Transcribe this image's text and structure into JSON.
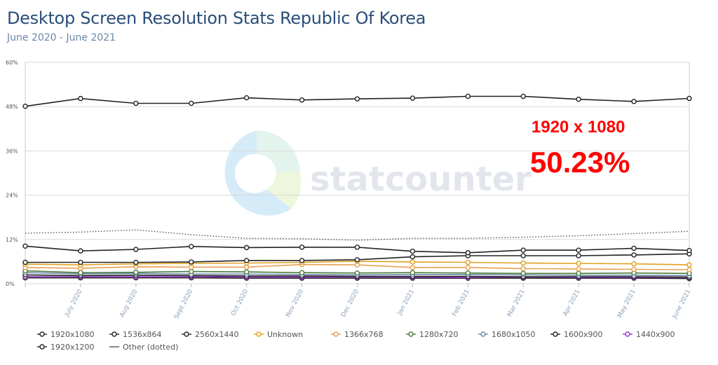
{
  "header": {
    "title": "Desktop Screen Resolution Stats Republic Of Korea",
    "subtitle": "June 2020 - June 2021"
  },
  "callout": {
    "label": "1920 x 1080",
    "value": "50.23%"
  },
  "watermark": {
    "text": "statcounter",
    "logo_icon": "statcounter-logo-icon"
  },
  "chart_data": {
    "type": "line",
    "title": "Desktop Screen Resolution Stats Republic Of Korea",
    "subtitle": "June 2020 - June 2021",
    "xlabel": "",
    "ylabel": "",
    "ylim": [
      0,
      60
    ],
    "yticks": [
      "0%",
      "12%",
      "24%",
      "36%",
      "48%",
      "60%"
    ],
    "ytick_values": [
      0,
      12,
      24,
      36,
      48,
      60
    ],
    "categories": [
      "June 2020",
      "July 2020",
      "Aug 2020",
      "Sept 2020",
      "Oct 2020",
      "Nov 2020",
      "Dec 2020",
      "Jan 2021",
      "Feb 2021",
      "Mar 2021",
      "Apr 2021",
      "May 2021",
      "June 2021"
    ],
    "xtick_labels": [
      "",
      "July 2020",
      "Aug 2020",
      "Sept 2020",
      "Oct 2020",
      "Nov 2020",
      "Dec 2020",
      "Jan 2021",
      "Feb 2021",
      "Mar 2021",
      "Apr 2021",
      "May 2021",
      "June 2021"
    ],
    "grid": true,
    "legend_position": "bottom",
    "series": [
      {
        "name": "1920x1080",
        "color": "#222222",
        "values": [
          48.1,
          50.2,
          48.9,
          48.9,
          50.4,
          49.8,
          50.1,
          50.3,
          50.8,
          50.8,
          50.0,
          49.4,
          50.23
        ]
      },
      {
        "name": "1536x864",
        "color": "#222222",
        "values": [
          10.2,
          8.9,
          9.3,
          10.1,
          9.8,
          9.9,
          9.9,
          8.8,
          8.4,
          9.1,
          9.1,
          9.6,
          9.0
        ]
      },
      {
        "name": "2560x1440",
        "color": "#222222",
        "values": [
          5.8,
          5.8,
          5.8,
          5.9,
          6.3,
          6.3,
          6.5,
          7.3,
          7.6,
          7.6,
          7.6,
          7.8,
          8.1
        ]
      },
      {
        "name": "Unknown",
        "color": "#e0a020",
        "values": [
          5.3,
          5.1,
          5.4,
          5.5,
          5.6,
          5.8,
          6.1,
          5.9,
          5.8,
          5.6,
          5.5,
          5.4,
          5.1
        ]
      },
      {
        "name": "1366x768",
        "color": "#e8a050",
        "values": [
          4.4,
          4.2,
          4.6,
          4.5,
          4.5,
          5.2,
          5.1,
          4.4,
          4.4,
          4.1,
          4.0,
          3.9,
          3.8
        ]
      },
      {
        "name": "1280x720",
        "color": "#4a7a3a",
        "values": [
          3.5,
          3.0,
          3.1,
          3.3,
          3.2,
          3.0,
          2.9,
          3.0,
          2.9,
          2.8,
          2.8,
          2.9,
          2.8
        ]
      },
      {
        "name": "1680x1050",
        "color": "#6a8aa8",
        "values": [
          3.0,
          2.7,
          2.8,
          2.6,
          2.6,
          2.5,
          2.4,
          2.5,
          2.5,
          2.4,
          2.3,
          2.3,
          2.2
        ]
      },
      {
        "name": "1600x900",
        "color": "#222222",
        "values": [
          2.4,
          2.2,
          2.3,
          2.2,
          2.1,
          2.1,
          2.0,
          2.0,
          2.0,
          1.9,
          1.9,
          1.9,
          1.8
        ]
      },
      {
        "name": "1440x900",
        "color": "#9b30d0",
        "values": [
          1.9,
          1.9,
          1.9,
          1.9,
          1.8,
          1.8,
          1.8,
          1.8,
          1.7,
          1.8,
          1.7,
          1.7,
          1.7
        ]
      },
      {
        "name": "1920x1200",
        "color": "#222222",
        "values": [
          1.6,
          1.6,
          1.6,
          1.6,
          1.5,
          1.5,
          1.5,
          1.5,
          1.5,
          1.5,
          1.5,
          1.5,
          1.4
        ]
      },
      {
        "name": "Other (dotted)",
        "color": "#555555",
        "dotted": true,
        "values": [
          13.7,
          14.0,
          14.6,
          13.3,
          12.3,
          12.2,
          11.8,
          12.3,
          12.3,
          12.6,
          13.0,
          13.6,
          14.2
        ]
      }
    ]
  }
}
